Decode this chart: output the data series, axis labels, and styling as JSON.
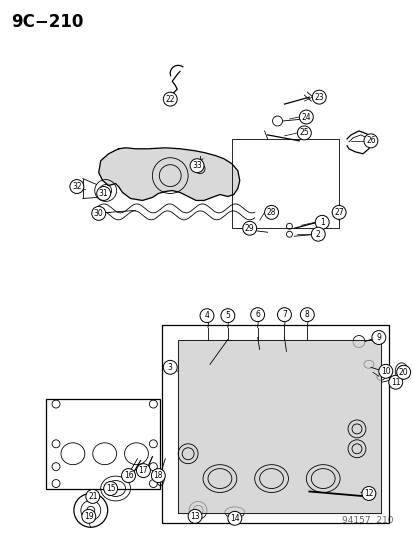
{
  "title": "9C−210",
  "footer": "94157  210",
  "bg_color": "#ffffff",
  "line_color": "#000000",
  "title_fontsize": 12,
  "footer_fontsize": 6.5,
  "label_fontsize": 5.5,
  "cover_color": "#d0d0d0",
  "head_color": "#c8c8c8"
}
